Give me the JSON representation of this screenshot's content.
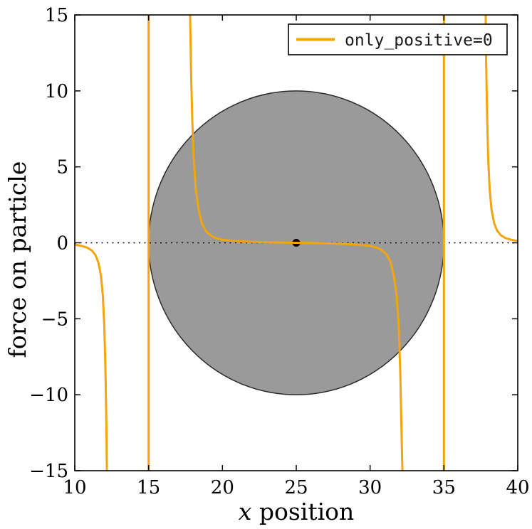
{
  "chart_data": {
    "type": "line",
    "title": "",
    "xlabel": "x position",
    "xlabel_parts": [
      "x",
      " position"
    ],
    "ylabel": "force on particle",
    "xlim": [
      10,
      40
    ],
    "ylim": [
      -15,
      15
    ],
    "xticks": [
      10,
      15,
      20,
      25,
      30,
      35,
      40
    ],
    "yticks": [
      -15,
      -10,
      -5,
      0,
      5,
      10,
      15
    ],
    "grid": false,
    "legend": [
      "only_positive=0"
    ],
    "legend_position": "upper right",
    "colors": {
      "curve": "#F2A50C",
      "sphere_fill": "#9A9A9A",
      "sphere_edge": "#2B2B2B",
      "zero_line": "#000000",
      "center_dot": "#000000"
    },
    "annotations": {
      "sphere": {
        "center": [
          25,
          0
        ],
        "radius": 10
      },
      "center_dot": {
        "x": 25,
        "y": 0
      },
      "zero_line": {
        "y": 0,
        "style": "dotted"
      }
    },
    "series": [
      {
        "name": "only_positive=0",
        "color": "#F2A50C",
        "segments": [
          [
            [
              10,
              -0.12
            ],
            [
              10.45,
              -0.2
            ],
            [
              10.85,
              -0.32
            ],
            [
              11.15,
              -0.5
            ],
            [
              11.4,
              -0.8
            ],
            [
              11.6,
              -1.3
            ],
            [
              11.78,
              -2.2
            ],
            [
              11.9,
              -3.5
            ],
            [
              12.0,
              -5.5
            ],
            [
              12.08,
              -8.5
            ],
            [
              12.14,
              -12
            ],
            [
              12.18,
              -15.6
            ]
          ],
          [
            [
              15,
              -15.6
            ],
            [
              15,
              15.6
            ]
          ],
          [
            [
              17.8,
              15.6
            ],
            [
              17.88,
              11
            ],
            [
              17.96,
              8
            ],
            [
              18.06,
              5.5
            ],
            [
              18.2,
              3.5
            ],
            [
              18.4,
              2.1
            ],
            [
              18.62,
              1.25
            ],
            [
              18.9,
              0.75
            ],
            [
              19.25,
              0.45
            ],
            [
              19.6,
              0.3
            ],
            [
              20.0,
              0.2
            ],
            [
              20.8,
              0.12
            ],
            [
              21.8,
              0.07
            ],
            [
              23.3,
              0.03
            ],
            [
              25,
              0
            ],
            [
              26.7,
              -0.03
            ],
            [
              28.2,
              -0.07
            ],
            [
              29.2,
              -0.12
            ],
            [
              30.0,
              -0.2
            ],
            [
              30.4,
              -0.3
            ],
            [
              30.75,
              -0.45
            ],
            [
              31.1,
              -0.75
            ],
            [
              31.38,
              -1.25
            ],
            [
              31.6,
              -2.1
            ],
            [
              31.8,
              -3.5
            ],
            [
              31.94,
              -5.5
            ],
            [
              32.04,
              -8.5
            ],
            [
              32.12,
              -12
            ],
            [
              32.2,
              -15.6
            ]
          ],
          [
            [
              35,
              -15.6
            ],
            [
              35,
              15.6
            ]
          ],
          [
            [
              37.82,
              15.6
            ],
            [
              37.86,
              12
            ],
            [
              37.92,
              8.5
            ],
            [
              38.0,
              5.5
            ],
            [
              38.1,
              3.5
            ],
            [
              38.22,
              2.2
            ],
            [
              38.4,
              1.3
            ],
            [
              38.6,
              0.8
            ],
            [
              38.85,
              0.5
            ],
            [
              39.15,
              0.32
            ],
            [
              39.55,
              0.2
            ],
            [
              40,
              0.12
            ]
          ]
        ]
      }
    ]
  }
}
